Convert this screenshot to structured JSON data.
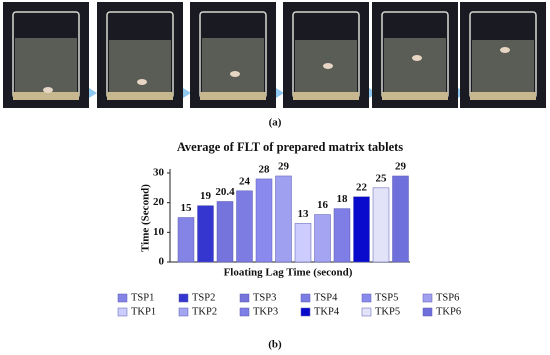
{
  "panel_labels": [
    "(a)",
    "(b)"
  ],
  "chart_data": {
    "type": "bar",
    "title": "Average of FLT of prepared matrix tablets",
    "y_label": "Time (Second)",
    "x_label": "Floating Lag Time (second)",
    "categories": [
      null
    ],
    "series": [
      {
        "name": "TSP1",
        "color": "#8484e6",
        "values": [
          15
        ]
      },
      {
        "name": "TSP2",
        "color": "#3535cf",
        "values": [
          19
        ]
      },
      {
        "name": "TSP3",
        "color": "#7474dc",
        "values": [
          20.4
        ]
      },
      {
        "name": "TSP4",
        "color": "#7c7ce2",
        "values": [
          24
        ]
      },
      {
        "name": "TSP5",
        "color": "#8a8aee",
        "values": [
          28
        ]
      },
      {
        "name": "TSP6",
        "color": "#a0a0f0",
        "values": [
          29
        ]
      },
      {
        "name": "TKP1",
        "color": "#ccccff",
        "values": [
          13
        ]
      },
      {
        "name": "TKP2",
        "color": "#a4a4f2",
        "values": [
          16
        ]
      },
      {
        "name": "TKP3",
        "color": "#7e7ee6",
        "values": [
          18
        ]
      },
      {
        "name": "TKP4",
        "color": "#0a0acc",
        "values": [
          22
        ]
      },
      {
        "name": "TKP5",
        "color": "#e2e2f8",
        "values": [
          25
        ]
      },
      {
        "name": "TKP6",
        "color": "#7070dc",
        "values": [
          29
        ]
      }
    ],
    "ylim": [
      0,
      30
    ],
    "yticks": [
      0,
      10,
      20,
      30
    ],
    "grid": false,
    "legend": "bottom"
  }
}
